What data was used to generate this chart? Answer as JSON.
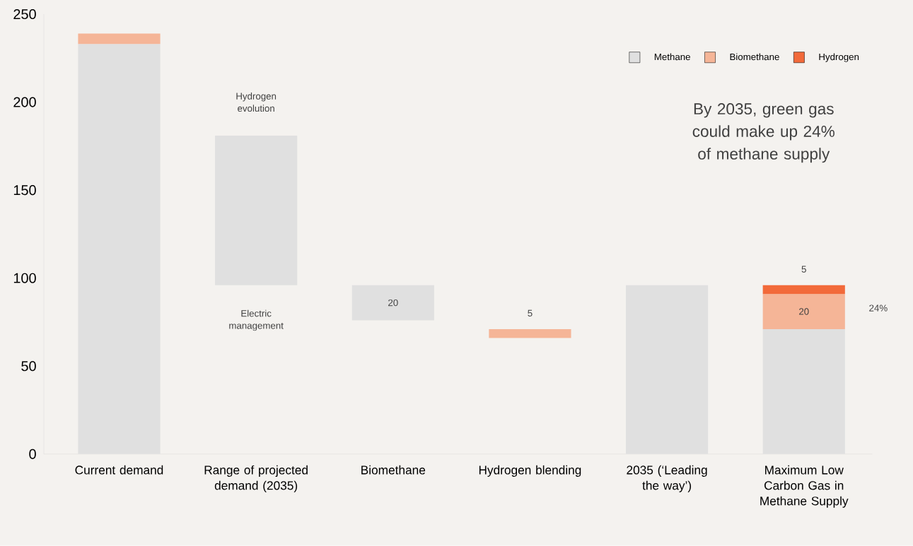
{
  "chart_data": {
    "type": "bar",
    "stacked": true,
    "categories": [
      "Current demand",
      "Range of projected demand (2035)",
      "Biomethane",
      "Hydrogen blending",
      "2035 (‘Leading the way’)",
      "Maximum Low Carbon Gas in Methane Supply"
    ],
    "series": [
      {
        "name": "Methane",
        "color": "#e0e0e0",
        "values": [
          233,
          85,
          20,
          null,
          96,
          71
        ],
        "base": [
          0,
          96,
          76,
          null,
          0,
          0
        ],
        "value_labels": [
          null,
          null,
          "20",
          null,
          null,
          null
        ]
      },
      {
        "name": "Biomethane",
        "color": "#f5b597",
        "values": [
          6,
          null,
          null,
          5,
          null,
          20
        ],
        "base": [
          null,
          null,
          null,
          66,
          null,
          null
        ],
        "value_labels": [
          null,
          null,
          null,
          "5",
          null,
          "20"
        ]
      },
      {
        "name": "Hydrogen",
        "color": "#f26a3a",
        "values": [
          null,
          null,
          null,
          null,
          null,
          5
        ],
        "value_labels": [
          null,
          null,
          null,
          null,
          null,
          "5"
        ]
      }
    ],
    "ylim": [
      0,
      250
    ],
    "yticks": [
      0,
      50,
      100,
      150,
      200,
      250
    ],
    "legend": "top right",
    "annotations": [
      "By 2035, green gas could make up 24% of methane supply",
      "Hydrogen evolution",
      "Electric management",
      "24%"
    ]
  }
}
